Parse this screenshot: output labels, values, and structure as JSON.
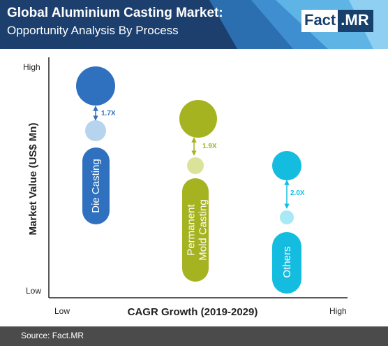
{
  "header": {
    "title": "Global Aluminium Casting Market:",
    "subtitle": "Opportunity Analysis By Process",
    "logo_left": "Fact",
    "logo_right": ".MR"
  },
  "colors": {
    "header_dark": "#1c3f6e",
    "header_mid": "#2b6fb0",
    "header_light": "#5fb4e6",
    "die_casting": "#2f71be",
    "die_casting_light": "#b6d4ee",
    "permanent": "#a5b321",
    "permanent_light": "#dbe39a",
    "others": "#14bde0",
    "others_light": "#a9e8f5",
    "axis": "#222222",
    "footer": "#4b4b4b"
  },
  "chart_data": {
    "type": "bubble",
    "ylabel": "Market Value (US$ Mn)",
    "xlabel": "CAGR Growth (2019-2029)",
    "y_tick_labels": [
      "High",
      "Low"
    ],
    "x_tick_labels": [
      "Low",
      "High"
    ],
    "series": [
      {
        "name": "Die Casting",
        "label_lines": [
          "Die Casting"
        ],
        "multiplier": "1.7X",
        "color_key": "die_casting"
      },
      {
        "name": "Permanent Mold Casting",
        "label_lines": [
          "Permanent",
          "Mold Casting"
        ],
        "multiplier": "1.9X",
        "color_key": "permanent"
      },
      {
        "name": "Others",
        "label_lines": [
          "Others"
        ],
        "multiplier": "2.0X",
        "color_key": "others"
      }
    ]
  },
  "footer": {
    "source": "Source: Fact.MR"
  }
}
